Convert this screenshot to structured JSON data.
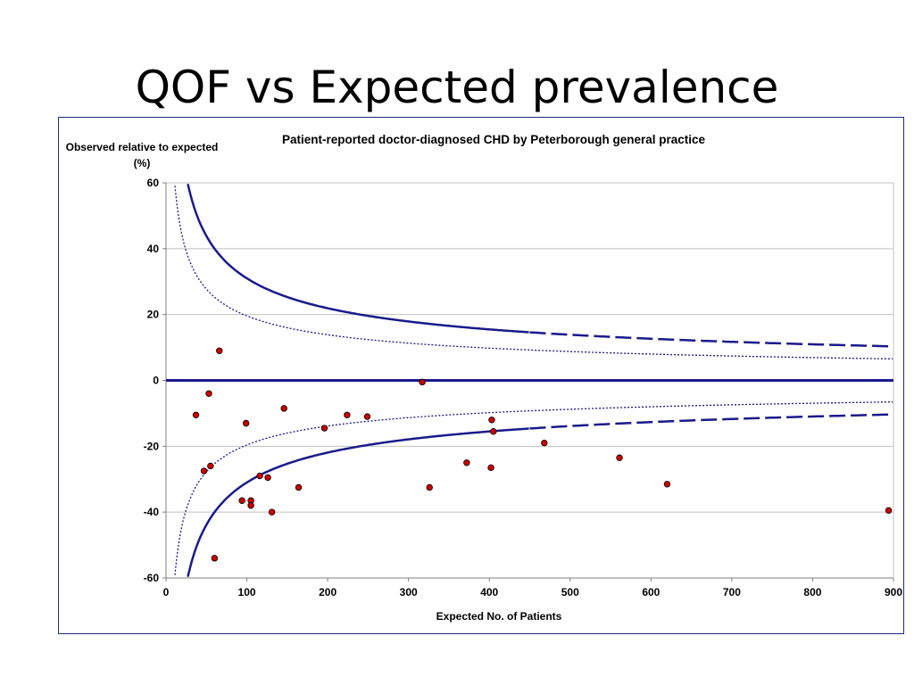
{
  "slide": {
    "title": "QOF vs Expected prevalence"
  },
  "chart_data": {
    "type": "scatter",
    "title": "Patient-reported doctor-diagnosed CHD by  Peterborough general practice",
    "ylabel_lines": [
      "Observed relative to expected",
      "(%)"
    ],
    "xlabel": "Expected No. of Patients",
    "xlim": [
      0,
      900
    ],
    "ylim": [
      -60,
      60
    ],
    "xticks": [
      0,
      100,
      200,
      300,
      400,
      500,
      600,
      700,
      800,
      900
    ],
    "yticks": [
      60,
      40,
      20,
      0,
      -20,
      -40,
      -60
    ],
    "grid": "horizontal",
    "legend": "none",
    "colors": {
      "points": "#cc0000",
      "limits": "#1a1a8c",
      "frame": "#1f2a80"
    },
    "reference_line": {
      "y": 0
    },
    "control_limits": [
      {
        "name": "inner",
        "style": "dotted",
        "k": 196
      },
      {
        "name": "outer",
        "style": "solid-then-dashed",
        "k": 310,
        "dashed_from_x": 450
      }
    ],
    "points": [
      {
        "x": 37,
        "y": -10.5
      },
      {
        "x": 47,
        "y": -27.5
      },
      {
        "x": 53,
        "y": -4
      },
      {
        "x": 55,
        "y": -26
      },
      {
        "x": 60,
        "y": -54
      },
      {
        "x": 66,
        "y": 9
      },
      {
        "x": 94,
        "y": -36.5
      },
      {
        "x": 99,
        "y": -13
      },
      {
        "x": 105,
        "y": -36.5
      },
      {
        "x": 105,
        "y": -38
      },
      {
        "x": 116,
        "y": -29
      },
      {
        "x": 126,
        "y": -29.5
      },
      {
        "x": 131,
        "y": -40
      },
      {
        "x": 146,
        "y": -8.5
      },
      {
        "x": 164,
        "y": -32.5
      },
      {
        "x": 196,
        "y": -14.5
      },
      {
        "x": 224,
        "y": -10.5
      },
      {
        "x": 249,
        "y": -11
      },
      {
        "x": 317,
        "y": -0.5
      },
      {
        "x": 326,
        "y": -32.5
      },
      {
        "x": 372,
        "y": -25
      },
      {
        "x": 402,
        "y": -26.5
      },
      {
        "x": 403,
        "y": -12
      },
      {
        "x": 405,
        "y": -15.5
      },
      {
        "x": 468,
        "y": -19
      },
      {
        "x": 561,
        "y": -23.5
      },
      {
        "x": 620,
        "y": -31.5
      },
      {
        "x": 894,
        "y": -39.5
      }
    ]
  }
}
